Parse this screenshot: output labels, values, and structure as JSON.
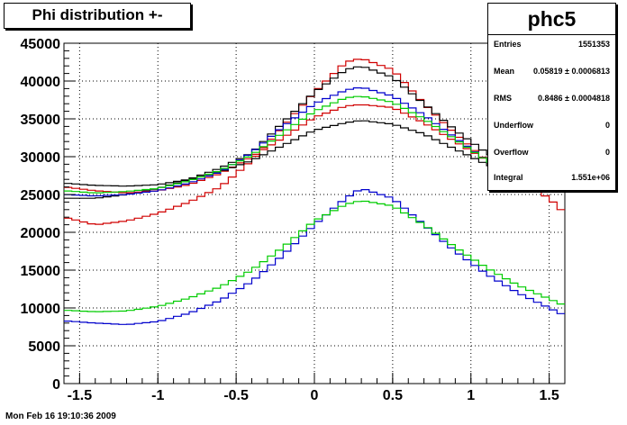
{
  "title": "Phi distribution +-",
  "timestamp": "Mon Feb 16 19:10:36 2009",
  "stats": {
    "name": "phc5",
    "rows": [
      {
        "key": "Entries",
        "value": "1551353"
      },
      {
        "key": "Mean",
        "value": "0.05819 ± 0.0006813"
      },
      {
        "key": "RMS",
        "value": "0.8486 ± 0.0004818"
      },
      {
        "key": "Underflow",
        "value": "0"
      },
      {
        "key": "Overflow",
        "value": "0"
      },
      {
        "key": "Integral",
        "value": "1.551e+06"
      }
    ]
  },
  "chart_data": {
    "type": "line",
    "style": "step-histogram",
    "title": "Phi distribution +-",
    "xlabel": "",
    "ylabel": "",
    "xlim": [
      -1.6,
      1.6
    ],
    "ylim": [
      0,
      45000
    ],
    "x_ticks": [
      "-1.5",
      "-1",
      "-0.5",
      "0",
      "0.5",
      "1",
      "1.5"
    ],
    "y_ticks": [
      "0",
      "5000",
      "10000",
      "15000",
      "20000",
      "25000",
      "30000",
      "35000",
      "40000",
      "45000"
    ],
    "grid": true,
    "colors": {
      "red": "#d00000",
      "black": "#000000",
      "blue": "#0000cc",
      "green": "#00cc00"
    },
    "series": [
      {
        "color": "red",
        "x": [
          -1.6,
          -1.4,
          -1.2,
          -1.0,
          -0.8,
          -0.6,
          -0.4,
          -0.2,
          0.0,
          0.2,
          0.3,
          0.5,
          0.7,
          0.9,
          1.1,
          1.3,
          1.5,
          1.6
        ],
        "values": [
          22000,
          21000,
          21500,
          22500,
          24000,
          26000,
          29500,
          34000,
          38500,
          42500,
          43000,
          41500,
          37000,
          33000,
          29500,
          27000,
          24500,
          22500
        ]
      },
      {
        "color": "black",
        "x": [
          -1.6,
          -1.4,
          -1.2,
          -1.0,
          -0.8,
          -0.6,
          -0.4,
          -0.2,
          0.0,
          0.2,
          0.3,
          0.5,
          0.7,
          0.9,
          1.1,
          1.3,
          1.5,
          1.6
        ],
        "values": [
          24500,
          24500,
          25000,
          25800,
          27000,
          28500,
          30500,
          34500,
          38500,
          41500,
          42000,
          40500,
          37000,
          33500,
          30500,
          28500,
          26500,
          25500
        ]
      },
      {
        "color": "red",
        "x": [
          -1.6,
          -1.4,
          -1.2,
          -1.0,
          -0.8,
          -0.6,
          -0.4,
          -0.2,
          0.0,
          0.2,
          0.3,
          0.5,
          0.7,
          0.9,
          1.1,
          1.3,
          1.5,
          1.6
        ],
        "values": [
          26000,
          25500,
          25200,
          25500,
          26300,
          27800,
          30000,
          32500,
          35200,
          36700,
          36900,
          36500,
          34500,
          32000,
          29500,
          27500,
          26000,
          25500
        ]
      },
      {
        "color": "black",
        "x": [
          -1.6,
          -1.4,
          -1.2,
          -1.0,
          -0.8,
          -0.6,
          -0.4,
          -0.2,
          0.0,
          0.2,
          0.3,
          0.5,
          0.7,
          0.9,
          1.1,
          1.3,
          1.5,
          1.6
        ],
        "values": [
          26500,
          26200,
          26100,
          26300,
          27000,
          28000,
          29500,
          31500,
          33500,
          34500,
          34800,
          34300,
          33000,
          31000,
          29000,
          27500,
          26500,
          26000
        ]
      },
      {
        "color": "blue",
        "x": [
          -1.6,
          -1.4,
          -1.2,
          -1.0,
          -0.8,
          -0.6,
          -0.4,
          -0.2,
          0.0,
          0.2,
          0.3,
          0.5,
          0.7,
          0.9,
          1.1,
          1.3,
          1.5,
          1.6
        ],
        "values": [
          25000,
          24800,
          25000,
          25500,
          26500,
          28000,
          30500,
          34000,
          37000,
          38800,
          39200,
          38000,
          35500,
          32500,
          29500,
          27500,
          26000,
          25500
        ]
      },
      {
        "color": "green",
        "x": [
          -1.6,
          -1.4,
          -1.2,
          -1.0,
          -0.8,
          -0.6,
          -0.4,
          -0.2,
          0.0,
          0.2,
          0.3,
          0.5,
          0.7,
          0.9,
          1.1,
          1.3,
          1.5,
          1.6
        ],
        "values": [
          25500,
          25200,
          25400,
          25800,
          26800,
          28200,
          30200,
          33200,
          36000,
          37800,
          38000,
          37200,
          35000,
          32300,
          29500,
          27600,
          26200,
          25800
        ]
      },
      {
        "color": "blue",
        "x": [
          -1.6,
          -1.4,
          -1.2,
          -1.0,
          -0.8,
          -0.6,
          -0.4,
          -0.2,
          0.0,
          0.2,
          0.3,
          0.5,
          0.7,
          0.9,
          1.1,
          1.3,
          1.5,
          1.6
        ],
        "values": [
          8300,
          8000,
          7800,
          8200,
          9300,
          11000,
          13500,
          17000,
          21000,
          24500,
          25800,
          24500,
          21000,
          17500,
          14500,
          12000,
          10000,
          9000
        ]
      },
      {
        "color": "green",
        "x": [
          -1.6,
          -1.4,
          -1.2,
          -1.0,
          -0.8,
          -0.6,
          -0.4,
          -0.2,
          0.0,
          0.2,
          0.3,
          0.5,
          0.7,
          0.9,
          1.1,
          1.3,
          1.5,
          1.6
        ],
        "values": [
          9700,
          9500,
          9600,
          10200,
          11300,
          12800,
          15000,
          18000,
          21500,
          23700,
          24200,
          23500,
          21000,
          18000,
          15300,
          13000,
          11200,
          10300
        ]
      }
    ]
  }
}
